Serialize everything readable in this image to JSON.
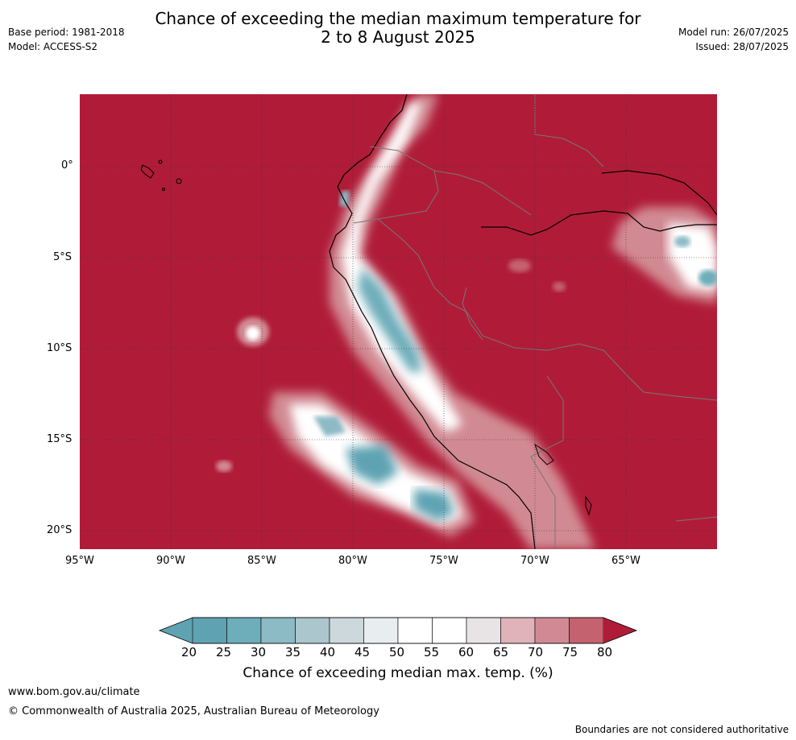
{
  "title": {
    "line1": "Chance of exceeding the median maximum temperature for",
    "line2": "2 to 8 August 2025"
  },
  "meta_left": {
    "base_period": "Base period: 1981-2018",
    "model": "Model: ACCESS-S2"
  },
  "meta_right": {
    "model_run": "Model run: 26/07/2025",
    "issued": "Issued: 28/07/2025"
  },
  "map": {
    "lat_labels": [
      "0°",
      "5°S",
      "10°S",
      "15°S",
      "20°S"
    ],
    "lon_labels": [
      "95°W",
      "90°W",
      "85°W",
      "80°W",
      "75°W",
      "70°W",
      "65°W"
    ],
    "colors": {
      "ocean_high": "#b01c38",
      "border": "#777777",
      "coast": "#000000",
      "grid": "#333333"
    }
  },
  "colorbar": {
    "labels": [
      "20",
      "25",
      "30",
      "35",
      "40",
      "45",
      "50",
      "55",
      "60",
      "65",
      "70",
      "75",
      "80"
    ],
    "colors": [
      "#5fa3b2",
      "#6eadba",
      "#8cbac5",
      "#abc6cd",
      "#cdd8dc",
      "#e8eef0",
      "#ffffff",
      "#ffffff",
      "#e8e4e6",
      "#dfb3b9",
      "#d18a93",
      "#c5626f",
      "#ba3e4c"
    ],
    "under_color": "#5fa3b2",
    "over_color": "#b01c38",
    "title": "Chance of exceeding median max. temp. (%)"
  },
  "footer": {
    "url": "www.bom.gov.au/climate",
    "copyright": "© Commonwealth of Australia 2025, Australian Bureau of Meteorology",
    "disclaimer": "Boundaries are not considered authoritative"
  }
}
